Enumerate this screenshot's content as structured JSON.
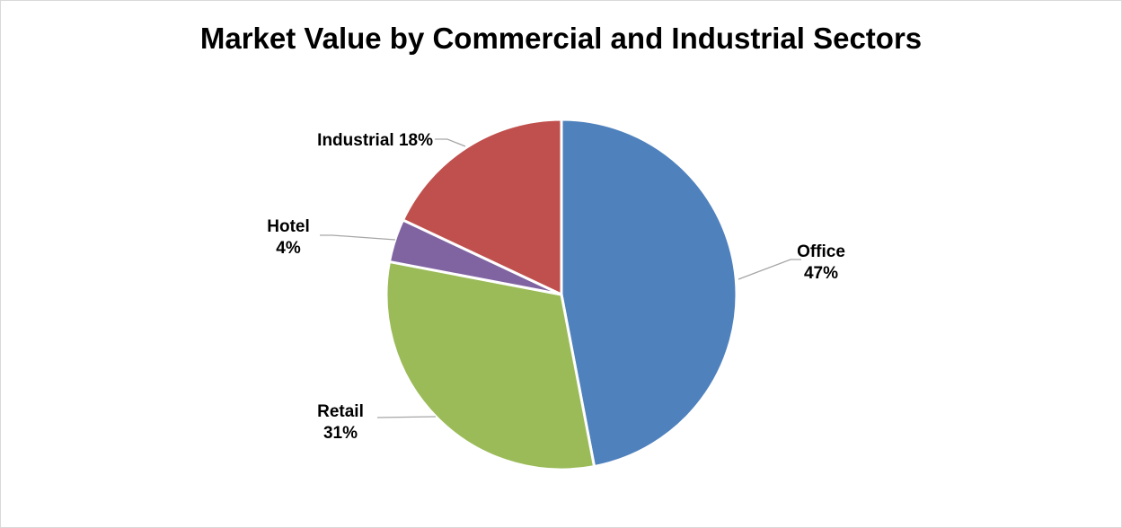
{
  "chart_data": {
    "type": "pie",
    "title": "Market Value by Commercial and Industrial Sectors",
    "slices": [
      {
        "name": "Office",
        "value": 47,
        "percent_label": "47%",
        "color": "#4f81bd"
      },
      {
        "name": "Retail",
        "value": 31,
        "percent_label": "31%",
        "color": "#9bbb59"
      },
      {
        "name": "Hotel",
        "value": 4,
        "percent_label": "4%",
        "color": "#8064a2"
      },
      {
        "name": "Industrial",
        "value": 18,
        "percent_label": "18%",
        "color": "#c0504d"
      }
    ],
    "start_angle": "12 o'clock",
    "direction": "clockwise",
    "legend": "none",
    "data_labels": "outside with leader lines"
  }
}
